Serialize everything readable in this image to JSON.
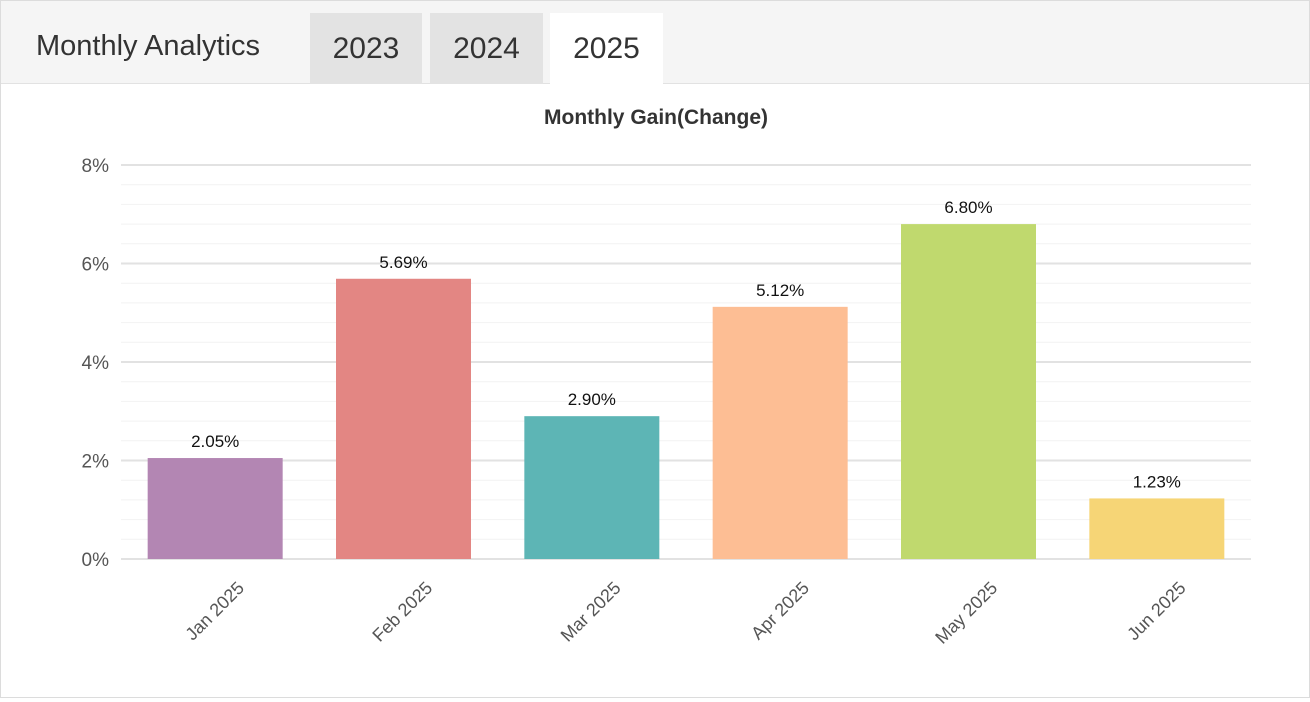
{
  "header": {
    "title": "Monthly Analytics",
    "tabs": [
      {
        "label": "2023",
        "active": false
      },
      {
        "label": "2024",
        "active": false
      },
      {
        "label": "2025",
        "active": true
      }
    ]
  },
  "chart_data": {
    "type": "bar",
    "title": "Monthly Gain(Change)",
    "xlabel": "",
    "ylabel": "",
    "categories": [
      "Jan 2025",
      "Feb 2025",
      "Mar 2025",
      "Apr 2025",
      "May 2025",
      "Jun 2025"
    ],
    "values": [
      2.05,
      5.69,
      2.9,
      5.12,
      6.8,
      1.23
    ],
    "value_labels": [
      "2.05%",
      "5.69%",
      "2.90%",
      "5.12%",
      "6.80%",
      "1.23%"
    ],
    "colors": [
      "#b386b3",
      "#e38683",
      "#5db5b5",
      "#fdbe94",
      "#c0d96e",
      "#f6d576"
    ],
    "ylim": [
      0,
      8
    ],
    "yticks": [
      0,
      2,
      4,
      6,
      8
    ],
    "ytick_labels": [
      "0%",
      "2%",
      "4%",
      "6%",
      "8%"
    ],
    "grid": true,
    "legend": "none"
  }
}
